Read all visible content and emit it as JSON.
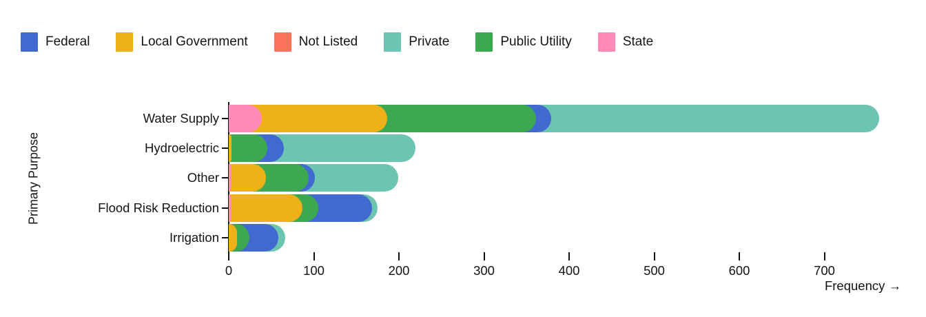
{
  "legend": {
    "items": [
      {
        "label": "Federal",
        "color": "#4269d0"
      },
      {
        "label": "Local Government",
        "color": "#efb118"
      },
      {
        "label": "Not Listed",
        "color": "#ff725c"
      },
      {
        "label": "Private",
        "color": "#6cc5b0"
      },
      {
        "label": "Public Utility",
        "color": "#3ca951"
      },
      {
        "label": "State",
        "color": "#ff8ab7"
      }
    ]
  },
  "axes": {
    "x_label": "Frequency →",
    "y_label": "Primary Purpose",
    "x_ticks": [
      0,
      100,
      200,
      300,
      400,
      500,
      600,
      700
    ]
  },
  "chart_data": {
    "type": "bar",
    "orientation": "horizontal",
    "stacked": true,
    "title": "",
    "xlabel": "Frequency",
    "ylabel": "Primary Purpose",
    "xlim": [
      0,
      780
    ],
    "grid": false,
    "legend_position": "top-left",
    "categories": [
      "Water Supply",
      "Hydroelectric",
      "Other",
      "Flood Risk Reduction",
      "Irrigation"
    ],
    "note": "Each row is stacked from 0; segments listed in visual order from axis outward (value = segment size, cumulative end shown by bar cap). Not Listed has no visible segment in any row.",
    "rows": [
      {
        "category": "Water Supply",
        "total": 764,
        "stack": [
          {
            "name": "State",
            "value": 39
          },
          {
            "name": "Local Government",
            "value": 147
          },
          {
            "name": "Public Utility",
            "value": 175
          },
          {
            "name": "Federal",
            "value": 18
          },
          {
            "name": "Private",
            "value": 385
          }
        ]
      },
      {
        "category": "Hydroelectric",
        "total": 219,
        "stack": [
          {
            "name": "Local Government",
            "value": 3
          },
          {
            "name": "Public Utility",
            "value": 42
          },
          {
            "name": "Federal",
            "value": 20
          },
          {
            "name": "Private",
            "value": 154
          }
        ]
      },
      {
        "category": "Other",
        "total": 199,
        "stack": [
          {
            "name": "State",
            "value": 2
          },
          {
            "name": "Local Government",
            "value": 42
          },
          {
            "name": "Public Utility",
            "value": 50
          },
          {
            "name": "Federal",
            "value": 7
          },
          {
            "name": "Private",
            "value": 98
          }
        ]
      },
      {
        "category": "Flood Risk Reduction",
        "total": 175,
        "stack": [
          {
            "name": "State",
            "value": 2
          },
          {
            "name": "Local Government",
            "value": 85
          },
          {
            "name": "Public Utility",
            "value": 18
          },
          {
            "name": "Federal",
            "value": 63
          },
          {
            "name": "Private",
            "value": 7
          }
        ]
      },
      {
        "category": "Irrigation",
        "total": 66,
        "stack": [
          {
            "name": "Local Government",
            "value": 10
          },
          {
            "name": "Public Utility",
            "value": 14
          },
          {
            "name": "Federal",
            "value": 34
          },
          {
            "name": "Private",
            "value": 8
          }
        ]
      }
    ]
  }
}
